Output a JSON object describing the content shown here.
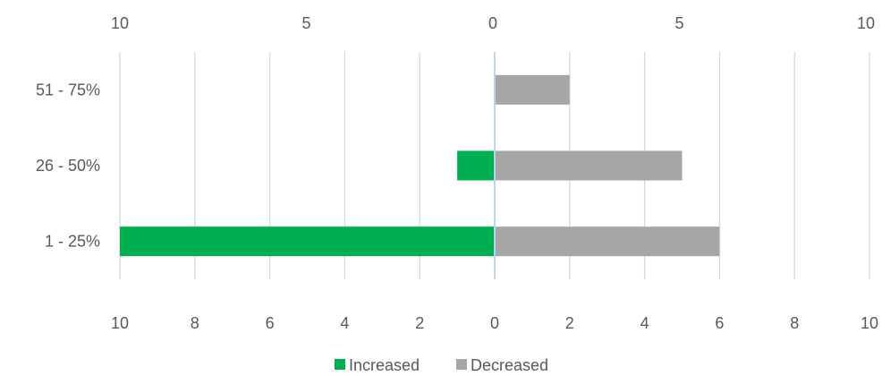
{
  "chart_data": {
    "type": "bar",
    "orientation": "horizontal",
    "categories": [
      "51 - 75%",
      "26 - 50%",
      "1 - 25%"
    ],
    "series": [
      {
        "name": "Increased",
        "values": [
          0,
          1,
          10
        ],
        "direction": "left",
        "color": "#00B050"
      },
      {
        "name": "Decreased",
        "values": [
          2,
          5,
          6
        ],
        "direction": "right",
        "color": "#A6A6A6"
      }
    ],
    "xlim": [
      -10,
      10
    ],
    "bottom_ticks": [
      "10",
      "8",
      "6",
      "4",
      "2",
      "0",
      "2",
      "4",
      "6",
      "8",
      "10"
    ],
    "top_ticks": [
      "10",
      "5",
      "0",
      "5",
      "10"
    ],
    "grid": true,
    "legend": {
      "position": "bottom",
      "entries": [
        "Increased",
        "Decreased"
      ]
    },
    "colors": {
      "grid": "#D9D9D9",
      "zero_line": "#9DC3E6",
      "text": "#595959"
    }
  }
}
